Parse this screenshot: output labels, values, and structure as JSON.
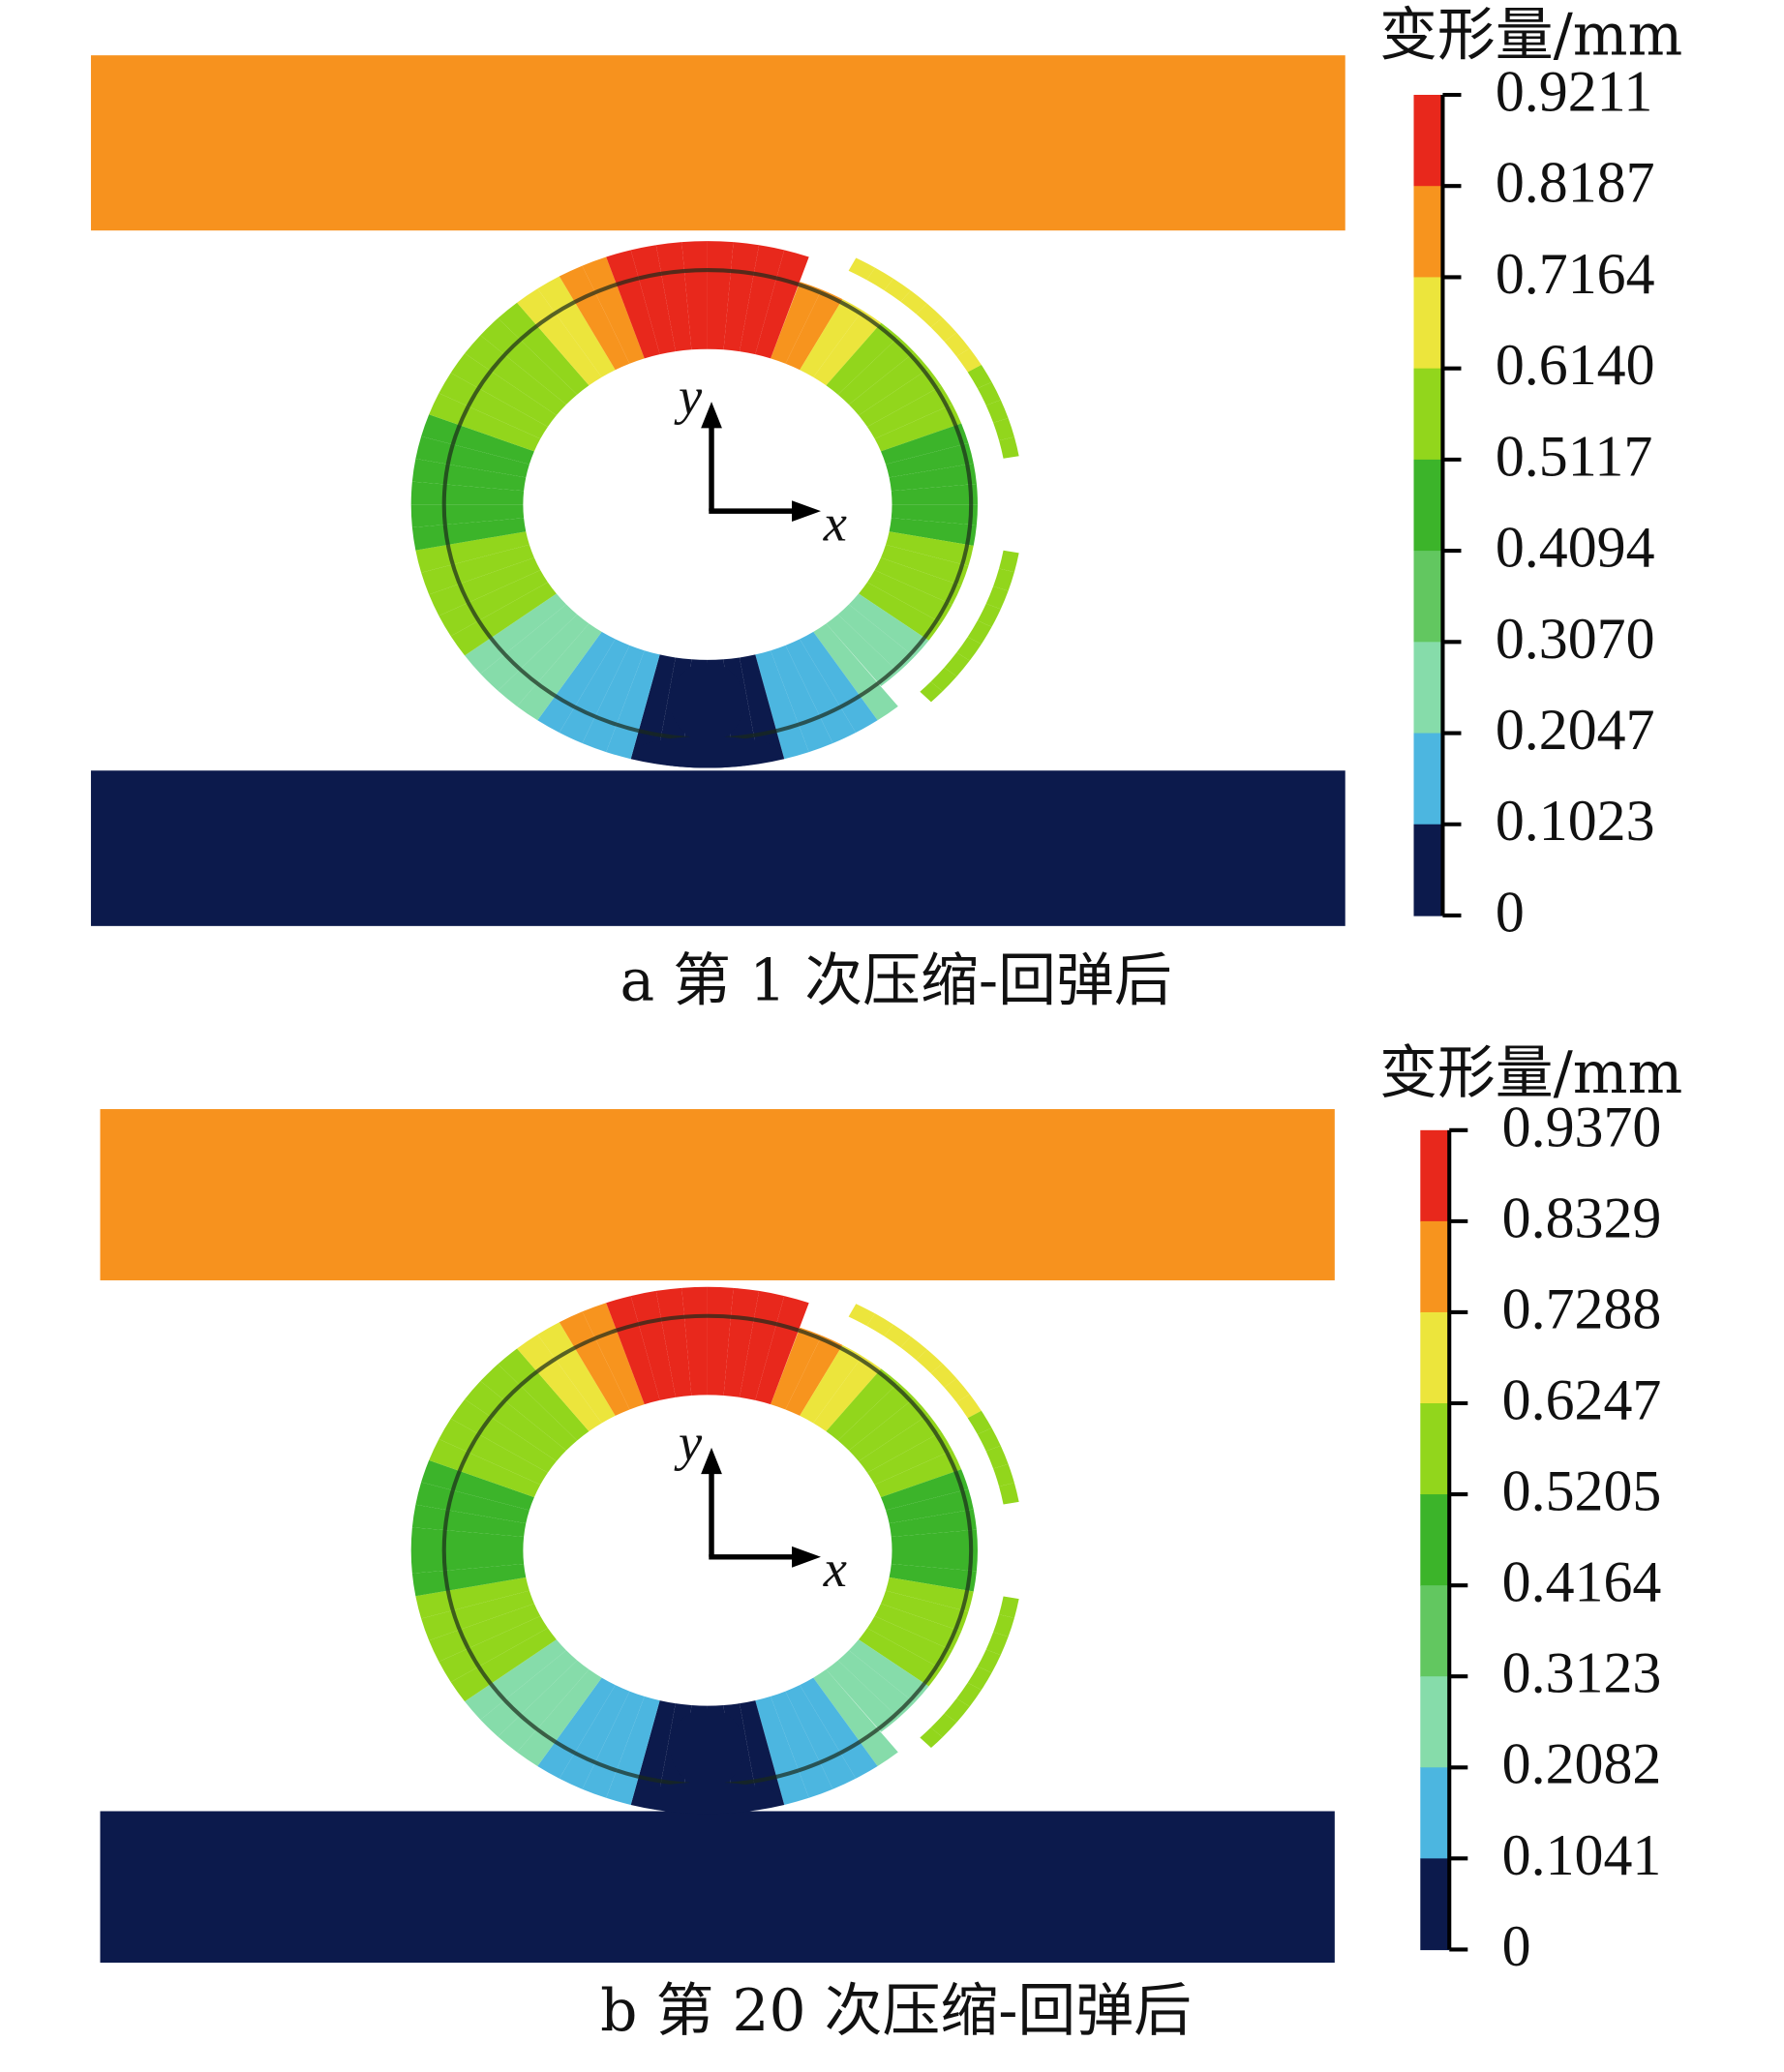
{
  "panels": [
    {
      "legend_title": "变形量/mm",
      "colorbar_labels": [
        "0.9211",
        "0.8187",
        "0.7164",
        "0.6140",
        "0.5117",
        "0.4094",
        "0.3070",
        "0.2047",
        "0.1023",
        "0"
      ],
      "axis_x": "x",
      "axis_y": "y",
      "caption": "a  第 1 次压缩-回弹后"
    },
    {
      "legend_title": "变形量/mm",
      "colorbar_labels": [
        "0.9370",
        "0.8329",
        "0.7288",
        "0.6247",
        "0.5205",
        "0.4164",
        "0.3123",
        "0.2082",
        "0.1041",
        "0"
      ],
      "axis_x": "x",
      "axis_y": "y",
      "caption": "b  第 20 次压缩-回弹后"
    }
  ]
}
